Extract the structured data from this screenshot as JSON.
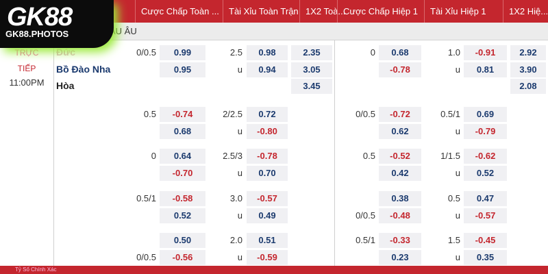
{
  "logo": {
    "title": "GK88",
    "subtitle": "GK88.PHOTOS"
  },
  "header": [
    "Cược Chấp Toàn ...",
    "Tài Xỉu Toàn Trận",
    "1X2 Toà...",
    "Cược Chấp Hiệp 1",
    "Tài Xỉu Hiệp 1",
    "1X2 Hiệ..."
  ],
  "league": "ÂU ÂU",
  "status": [
    "TRỰC",
    "TIẾP"
  ],
  "time": "11:00PM",
  "groups": [
    {
      "lines": [
        {
          "team": "Đức",
          "hcap": "0/0.5",
          "hcap_odds": "0.99",
          "ou": "2.5",
          "ou_odds": "0.98",
          "x12": "2.35",
          "h1_hcap": "0",
          "h1_hcap_odds": "0.68",
          "h1_ou": "1.0",
          "h1_ou_odds": "-0.91",
          "h1_x12": "2.92"
        },
        {
          "team": "Bồ Đào Nha",
          "hcap_odds": "0.95",
          "ou": "u",
          "ou_odds": "0.94",
          "x12": "3.05",
          "h1_hcap_odds": "-0.78",
          "h1_ou": "u",
          "h1_ou_odds": "0.81",
          "h1_x12": "3.90"
        },
        {
          "team": "Hòa",
          "x12": "3.45",
          "h1_x12": "2.08"
        }
      ]
    },
    {
      "lines": [
        {
          "hcap": "0.5",
          "hcap_odds": "-0.74",
          "ou": "2/2.5",
          "ou_odds": "0.72",
          "h1_hcap": "0/0.5",
          "h1_hcap_odds": "-0.72",
          "h1_ou": "0.5/1",
          "h1_ou_odds": "0.69"
        },
        {
          "hcap_odds": "0.68",
          "ou": "u",
          "ou_odds": "-0.80",
          "h1_hcap_odds": "0.62",
          "h1_ou": "u",
          "h1_ou_odds": "-0.79"
        }
      ]
    },
    {
      "lines": [
        {
          "hcap": "0",
          "hcap_odds": "0.64",
          "ou": "2.5/3",
          "ou_odds": "-0.78",
          "h1_hcap": "0.5",
          "h1_hcap_odds": "-0.52",
          "h1_ou": "1/1.5",
          "h1_ou_odds": "-0.62"
        },
        {
          "hcap_odds": "-0.70",
          "ou": "u",
          "ou_odds": "0.70",
          "h1_hcap_odds": "0.42",
          "h1_ou": "u",
          "h1_ou_odds": "0.52"
        }
      ]
    },
    {
      "lines": [
        {
          "hcap": "0.5/1",
          "hcap_odds": "-0.58",
          "ou": "3.0",
          "ou_odds": "-0.57",
          "h1_hcap_odds": "0.38",
          "h1_ou": "0.5",
          "h1_ou_odds": "0.47"
        },
        {
          "hcap_odds": "0.52",
          "ou": "u",
          "ou_odds": "0.49",
          "h1_hcap": "0/0.5",
          "h1_hcap_odds": "-0.48",
          "h1_ou": "u",
          "h1_ou_odds": "-0.57"
        }
      ]
    },
    {
      "lines": [
        {
          "hcap_odds": "0.50",
          "ou": "2.0",
          "ou_odds": "0.51",
          "h1_hcap": "0.5/1",
          "h1_hcap_odds": "-0.33",
          "h1_ou": "1.5",
          "h1_ou_odds": "-0.45"
        },
        {
          "hcap": "0/0.5",
          "hcap_odds": "-0.56",
          "ou": "u",
          "ou_odds": "-0.59",
          "h1_hcap_odds": "0.23",
          "h1_ou": "u",
          "h1_ou_odds": "0.35"
        }
      ]
    }
  ],
  "footer": "Tỷ Số Chính Xác"
}
